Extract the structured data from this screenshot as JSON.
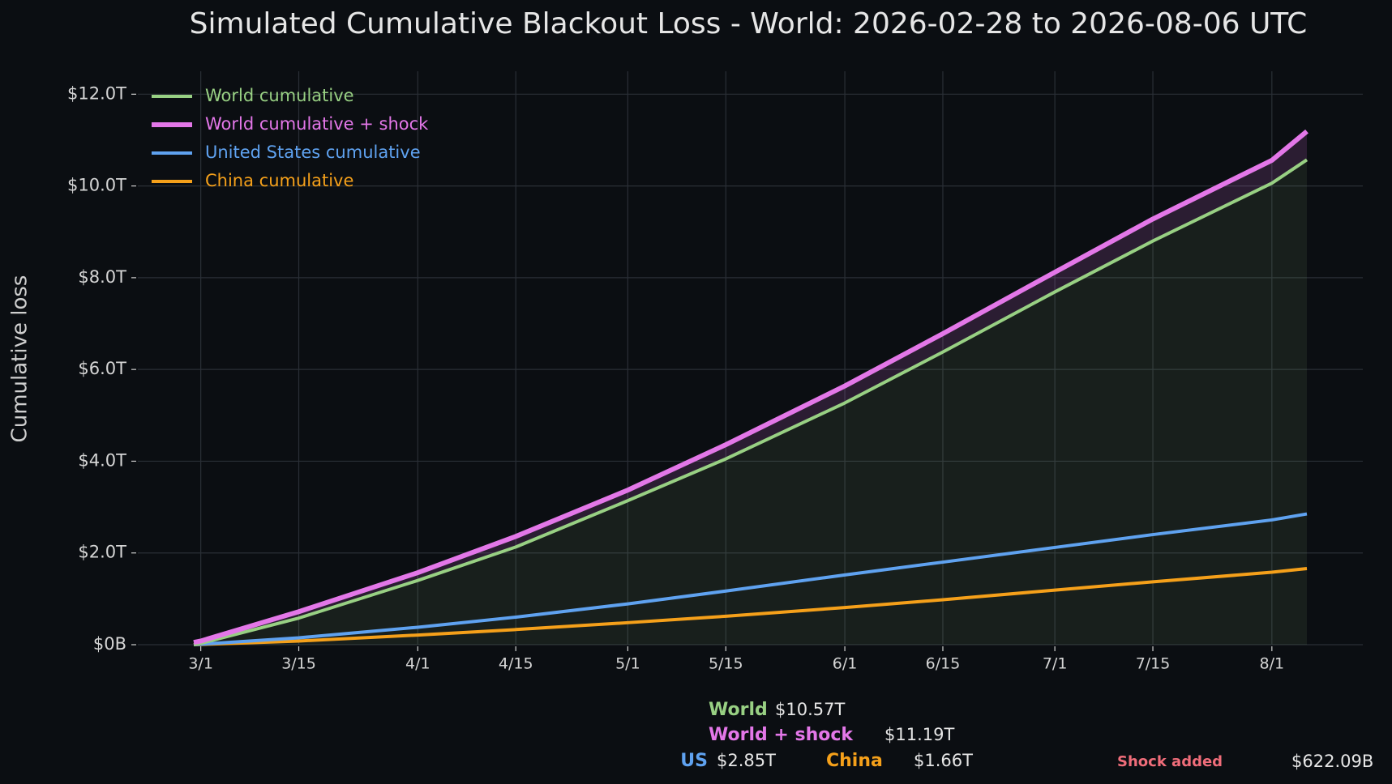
{
  "chart_data": {
    "type": "line",
    "title": "Simulated Cumulative Blackout Loss - World: 2026-02-28 to 2026-08-06 UTC",
    "ylabel": "Cumulative loss",
    "x": [
      "2/28",
      "3/1",
      "3/15",
      "4/1",
      "4/15",
      "5/1",
      "5/15",
      "6/1",
      "6/15",
      "7/1",
      "7/15",
      "8/1",
      "8/6"
    ],
    "series": [
      {
        "name": "World cumulative",
        "color": "#98d083",
        "width": 4,
        "values": [
          0,
          0.03,
          0.58,
          1.4,
          2.13,
          3.14,
          4.05,
          5.27,
          6.38,
          7.69,
          8.8,
          10.06,
          10.57
        ]
      },
      {
        "name": "World cumulative + shock",
        "color": "#e377e8",
        "width": 6,
        "values": [
          0.05,
          0.08,
          0.72,
          1.57,
          2.36,
          3.37,
          4.36,
          5.64,
          6.78,
          8.12,
          9.28,
          10.56,
          11.19
        ]
      },
      {
        "name": "United States cumulative",
        "color": "#5fa2f0",
        "width": 4,
        "values": [
          0,
          0.01,
          0.15,
          0.38,
          0.6,
          0.89,
          1.17,
          1.52,
          1.8,
          2.12,
          2.4,
          2.72,
          2.85
        ]
      },
      {
        "name": "China cumulative",
        "color": "#f5a01a",
        "width": 4,
        "values": [
          0,
          0.005,
          0.08,
          0.21,
          0.33,
          0.48,
          0.62,
          0.81,
          0.98,
          1.19,
          1.37,
          1.58,
          1.66
        ]
      }
    ],
    "ylim": [
      0,
      12.5
    ],
    "yticks": [
      {
        "value": 0,
        "label": "$0B"
      },
      {
        "value": 2,
        "label": "$2.0T"
      },
      {
        "value": 4,
        "label": "$4.0T"
      },
      {
        "value": 6,
        "label": "$6.0T"
      },
      {
        "value": 8,
        "label": "$8.0T"
      },
      {
        "value": 10,
        "label": "$10.0T"
      },
      {
        "value": 12,
        "label": "$12.0T"
      }
    ],
    "xticks": [
      "3/1",
      "3/15",
      "4/1",
      "4/15",
      "5/1",
      "5/15",
      "6/1",
      "6/15",
      "7/1",
      "7/15",
      "8/1"
    ],
    "grid": true,
    "legend": "upper left",
    "summary": [
      {
        "label": "World",
        "value": "$10.57T",
        "color": "#98d083"
      },
      {
        "label": "World + shock",
        "value": "$11.19T",
        "color": "#e377e8"
      },
      {
        "label": "US",
        "value": "$2.85T",
        "color": "#5fa2f0"
      },
      {
        "label": "China",
        "value": "$1.66T",
        "color": "#f5a01a"
      },
      {
        "label": "Shock added",
        "value": "$622.09B",
        "color": "#f06d7a"
      }
    ]
  }
}
